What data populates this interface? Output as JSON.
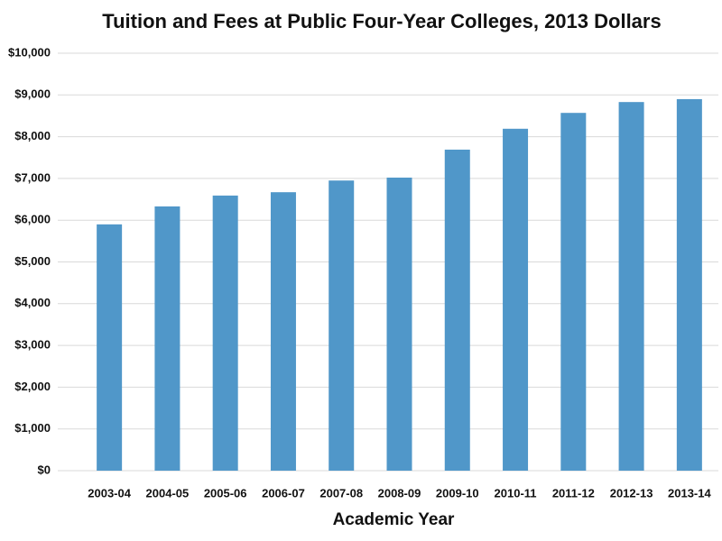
{
  "chart_data": {
    "type": "bar",
    "title": "Tuition and Fees at Public Four-Year Colleges, 2013 Dollars",
    "x_label": "Academic Year",
    "categories": [
      "2003-04",
      "2004-05",
      "2005-06",
      "2006-07",
      "2007-08",
      "2008-09",
      "2009-10",
      "2010-11",
      "2011-12",
      "2012-13",
      "2013-14"
    ],
    "values": [
      5900,
      6330,
      6590,
      6670,
      6950,
      7020,
      7690,
      8190,
      8570,
      8830,
      8900
    ],
    "color": "#5097c9",
    "ylim": [
      0,
      10000
    ],
    "yticks": [
      {
        "value": 0,
        "label": "$0"
      },
      {
        "value": 1000,
        "label": "$1,000"
      },
      {
        "value": 2000,
        "label": "$2,000"
      },
      {
        "value": 3000,
        "label": "$3,000"
      },
      {
        "value": 4000,
        "label": "$4,000"
      },
      {
        "value": 5000,
        "label": "$5,000"
      },
      {
        "value": 6000,
        "label": "$6,000"
      },
      {
        "value": 7000,
        "label": "$7,000"
      },
      {
        "value": 8000,
        "label": "$8,000"
      },
      {
        "value": 9000,
        "label": "$9,000"
      },
      {
        "value": 10000,
        "label": "$10,000"
      }
    ],
    "grid": true
  }
}
